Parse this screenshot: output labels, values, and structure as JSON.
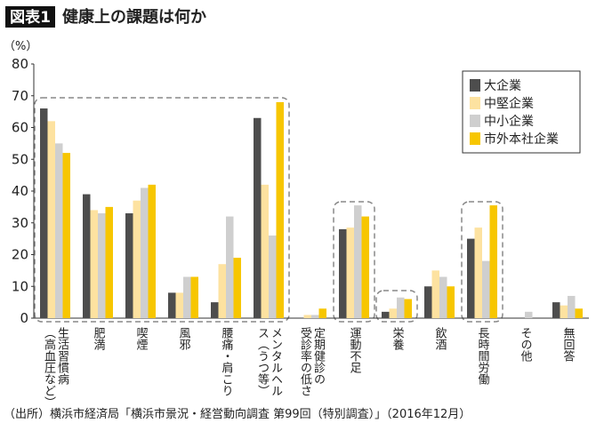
{
  "chart_data": {
    "type": "bar",
    "badge": "図表1",
    "title": "健康上の課題は何か",
    "y_unit": "（%）",
    "source": "（出所）横浜市経済局「横浜市景況・経営動向調査 第99回（特別調査）」（2016年12月）",
    "categories": [
      [
        "生活習慣病",
        "（高血圧など）"
      ],
      [
        "肥満"
      ],
      [
        "喫煙"
      ],
      [
        "風邪"
      ],
      [
        "腰痛・肩こり"
      ],
      [
        "メンタルヘル",
        "ス（うつ等）"
      ],
      [
        "定期健診の",
        "受診率の低さ"
      ],
      [
        "運動不足"
      ],
      [
        "栄養"
      ],
      [
        "飲酒"
      ],
      [
        "長時間労働"
      ],
      [
        "その他"
      ],
      [
        "無回答"
      ]
    ],
    "series": [
      {
        "name": "大企業",
        "color": "#4d4d4d",
        "values": [
          66,
          39,
          33,
          8,
          5,
          63,
          0,
          28,
          2,
          10,
          25,
          0,
          5
        ]
      },
      {
        "name": "中堅企業",
        "color": "#fde2a0",
        "values": [
          62,
          34,
          37,
          8,
          17,
          42,
          1,
          28.5,
          3,
          15,
          28.5,
          0,
          4
        ]
      },
      {
        "name": "中小企業",
        "color": "#cfcfcf",
        "values": [
          55,
          33,
          41,
          13,
          32,
          26,
          1,
          35.5,
          6.5,
          13,
          18,
          2,
          7
        ]
      },
      {
        "name": "市外本社企業",
        "color": "#f7c600",
        "values": [
          52,
          35,
          42,
          13,
          19,
          68,
          3,
          32,
          6,
          10,
          35.5,
          0,
          3
        ]
      }
    ],
    "ylim": [
      0,
      80
    ],
    "yticks": [
      0,
      10,
      20,
      30,
      40,
      50,
      60,
      70,
      80
    ],
    "grid": false,
    "legend": "top-right"
  }
}
